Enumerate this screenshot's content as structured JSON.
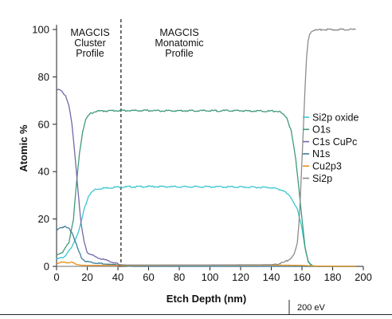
{
  "chart_data": {
    "type": "line",
    "xlabel": "Etch Depth (nm)",
    "ylabel": "Atomic %",
    "xlim": [
      0,
      200
    ],
    "ylim": [
      0,
      100
    ],
    "x_ticks": [
      0,
      20,
      40,
      60,
      80,
      100,
      120,
      140,
      160,
      180,
      200
    ],
    "y_ticks": [
      0,
      20,
      40,
      60,
      80,
      100
    ],
    "grid": false,
    "legend_position": "right",
    "series": [
      {
        "name": "Si2p oxide",
        "color": "#3cc6d0",
        "points": [
          [
            0,
            3
          ],
          [
            5,
            4
          ],
          [
            10,
            8
          ],
          [
            15,
            16
          ],
          [
            18,
            24
          ],
          [
            21,
            30
          ],
          [
            25,
            32.5
          ],
          [
            30,
            33
          ],
          [
            40,
            33.5
          ],
          [
            60,
            33.7
          ],
          [
            80,
            33.6
          ],
          [
            100,
            33.6
          ],
          [
            120,
            33.5
          ],
          [
            140,
            33.3
          ],
          [
            148,
            32
          ],
          [
            153,
            29
          ],
          [
            157,
            24
          ],
          [
            160,
            16
          ],
          [
            162,
            8
          ],
          [
            164,
            2
          ],
          [
            166,
            0.3
          ],
          [
            170,
            0
          ],
          [
            195,
            0
          ]
        ]
      },
      {
        "name": "O1s",
        "color": "#3f9a78",
        "points": [
          [
            0,
            5
          ],
          [
            4,
            6
          ],
          [
            8,
            10
          ],
          [
            11,
            20
          ],
          [
            13,
            35
          ],
          [
            15,
            48
          ],
          [
            17,
            57
          ],
          [
            19,
            62
          ],
          [
            22,
            64.5
          ],
          [
            26,
            65.5
          ],
          [
            40,
            65.8
          ],
          [
            80,
            65.7
          ],
          [
            120,
            65.7
          ],
          [
            145,
            65.5
          ],
          [
            150,
            63
          ],
          [
            153,
            57
          ],
          [
            156,
            45
          ],
          [
            158,
            33
          ],
          [
            160,
            20
          ],
          [
            162,
            8
          ],
          [
            164,
            2
          ],
          [
            167,
            0.2
          ],
          [
            170,
            0
          ],
          [
            195,
            0
          ]
        ]
      },
      {
        "name": "C1s CuPc",
        "color": "#6f6aa8",
        "points": [
          [
            0,
            75
          ],
          [
            3,
            74
          ],
          [
            6,
            72
          ],
          [
            8,
            68
          ],
          [
            10,
            60
          ],
          [
            12,
            47
          ],
          [
            14,
            32
          ],
          [
            16,
            18
          ],
          [
            18,
            10
          ],
          [
            20,
            6
          ],
          [
            25,
            4
          ],
          [
            30,
            3
          ],
          [
            35,
            2
          ],
          [
            40,
            1
          ],
          [
            43,
            0.3
          ],
          [
            50,
            0
          ],
          [
            195,
            0
          ]
        ]
      },
      {
        "name": "N1s",
        "color": "#3d7f99",
        "points": [
          [
            0,
            15
          ],
          [
            2,
            16.3
          ],
          [
            5,
            16.8
          ],
          [
            8,
            16
          ],
          [
            10,
            14.5
          ],
          [
            12,
            11
          ],
          [
            14,
            7
          ],
          [
            16,
            4
          ],
          [
            18,
            2.5
          ],
          [
            20,
            2
          ],
          [
            25,
            1.5
          ],
          [
            30,
            1
          ],
          [
            38,
            0.8
          ],
          [
            42,
            0.3
          ],
          [
            50,
            0
          ],
          [
            195,
            0
          ]
        ]
      },
      {
        "name": "Cu2p3",
        "color": "#e8901a",
        "points": [
          [
            0,
            1.2
          ],
          [
            3,
            1.6
          ],
          [
            7,
            1.8
          ],
          [
            10,
            1.5
          ],
          [
            13,
            0.8
          ],
          [
            16,
            0.5
          ],
          [
            20,
            0.4
          ],
          [
            40,
            0.4
          ],
          [
            80,
            0.5
          ],
          [
            120,
            0.5
          ],
          [
            150,
            0.5
          ],
          [
            160,
            0.4
          ],
          [
            170,
            0.1
          ],
          [
            195,
            0
          ]
        ]
      },
      {
        "name": "Si2p",
        "color": "#8c8c8c",
        "points": [
          [
            0,
            0
          ],
          [
            40,
            0
          ],
          [
            41,
            0.8
          ],
          [
            45,
            0.6
          ],
          [
            60,
            0.6
          ],
          [
            100,
            0.6
          ],
          [
            140,
            0.7
          ],
          [
            148,
            1.5
          ],
          [
            152,
            3
          ],
          [
            155,
            5
          ],
          [
            157,
            10
          ],
          [
            158,
            18
          ],
          [
            159,
            30
          ],
          [
            160,
            45
          ],
          [
            161,
            60
          ],
          [
            162,
            75
          ],
          [
            163,
            88
          ],
          [
            164,
            95
          ],
          [
            165,
            98
          ],
          [
            166,
            99
          ],
          [
            168,
            100
          ],
          [
            170,
            99.7
          ],
          [
            173,
            100
          ],
          [
            180,
            100
          ],
          [
            190,
            100
          ],
          [
            195,
            100
          ]
        ]
      }
    ],
    "annotations": {
      "divider_x": 42,
      "cluster_label": [
        "MAGCIS",
        "Cluster",
        "Profile"
      ],
      "monatomic_label": [
        "MAGCIS",
        "Monatomic",
        "Profile"
      ],
      "footer_note": "200 eV"
    }
  }
}
